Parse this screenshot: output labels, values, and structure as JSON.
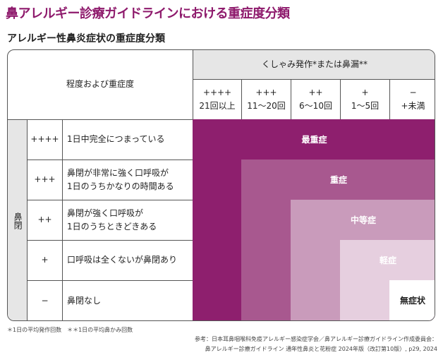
{
  "title": "鼻アレルギー診療ガイドラインにおける重症度分類",
  "subtitle": "アレルギー性鼻炎症状の重症度分類",
  "corner_label": "程度および重症度",
  "column_group": "くしゃみ発作*または鼻漏**",
  "columns": [
    {
      "sign": "++++",
      "range": "21回以上"
    },
    {
      "sign": "+++",
      "range": "11〜20回"
    },
    {
      "sign": "++",
      "range": "6〜10回"
    },
    {
      "sign": "+",
      "range": "1〜5回"
    },
    {
      "sign": "−",
      "range": "+未満"
    }
  ],
  "row_group": "鼻閉",
  "rows": [
    {
      "sign": "++++",
      "desc": "1日中完全につまっている"
    },
    {
      "sign": "+++",
      "desc": "鼻閉が非常に強く口呼吸が\n1日のうちかなりの時間ある"
    },
    {
      "sign": "++",
      "desc": "鼻閉が強く口呼吸が\n1日のうちときどきある"
    },
    {
      "sign": "+",
      "desc": "口呼吸は全くないが鼻閉あり"
    },
    {
      "sign": "−",
      "desc": "鼻閉なし"
    }
  ],
  "severity": [
    {
      "label": "最重症",
      "color": "#8e1f6e"
    },
    {
      "label": "重症",
      "color": "#a8588f"
    },
    {
      "label": "中等症",
      "color": "#c99bbb"
    },
    {
      "label": "軽症",
      "color": "#e6cfdf"
    },
    {
      "label": "無症状",
      "color": "#ffffff"
    }
  ],
  "notes": "＊1日の平均発作回数　＊＊1日の平均鼻かみ回数",
  "reference": [
    "参考：日本耳鼻咽喉科免疫アレルギー感染症学会／鼻アレルギー診療ガイドライン作成委員会：",
    "鼻アレルギー診療ガイドライン 通年性鼻炎と花粉症 2024年版（改訂第10版）, p29, 2024"
  ]
}
